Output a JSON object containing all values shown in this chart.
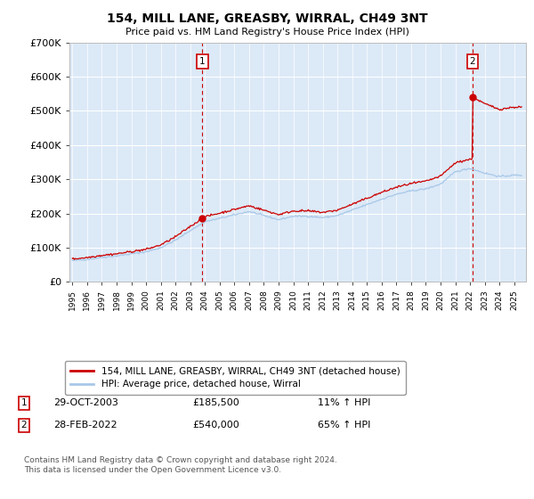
{
  "title": "154, MILL LANE, GREASBY, WIRRAL, CH49 3NT",
  "subtitle": "Price paid vs. HM Land Registry's House Price Index (HPI)",
  "plot_bg_color": "#dce9f7",
  "sale1_date_x": 2003.83,
  "sale1_price": 185500,
  "sale2_date_x": 2022.16,
  "sale2_price": 540000,
  "legend_label_red": "154, MILL LANE, GREASBY, WIRRAL, CH49 3NT (detached house)",
  "legend_label_blue": "HPI: Average price, detached house, Wirral",
  "annotation1_date": "29-OCT-2003",
  "annotation1_price": "£185,500",
  "annotation1_hpi": "11% ↑ HPI",
  "annotation2_date": "28-FEB-2022",
  "annotation2_price": "£540,000",
  "annotation2_hpi": "65% ↑ HPI",
  "copyright_text": "Contains HM Land Registry data © Crown copyright and database right 2024.\nThis data is licensed under the Open Government Licence v3.0.",
  "ylim": [
    0,
    700000
  ],
  "xlim_start": 1994.8,
  "xlim_end": 2025.8,
  "yticks": [
    0,
    100000,
    200000,
    300000,
    400000,
    500000,
    600000,
    700000
  ],
  "ytick_labels": [
    "£0",
    "£100K",
    "£200K",
    "£300K",
    "£400K",
    "£500K",
    "£600K",
    "£700K"
  ],
  "hpi_years": [
    1995,
    1996,
    1997,
    1998,
    1999,
    2000,
    2001,
    2002,
    2003,
    2004,
    2005,
    2006,
    2007,
    2008,
    2009,
    2010,
    2011,
    2012,
    2013,
    2014,
    2015,
    2016,
    2017,
    2018,
    2019,
    2020,
    2021,
    2022,
    2023,
    2024,
    2025
  ],
  "hpi_values": [
    62000,
    66000,
    72000,
    76000,
    82000,
    88000,
    100000,
    122000,
    150000,
    176000,
    186000,
    196000,
    206000,
    194000,
    182000,
    192000,
    192000,
    188000,
    194000,
    210000,
    226000,
    242000,
    256000,
    266000,
    272000,
    286000,
    322000,
    332000,
    318000,
    308000,
    312000
  ]
}
